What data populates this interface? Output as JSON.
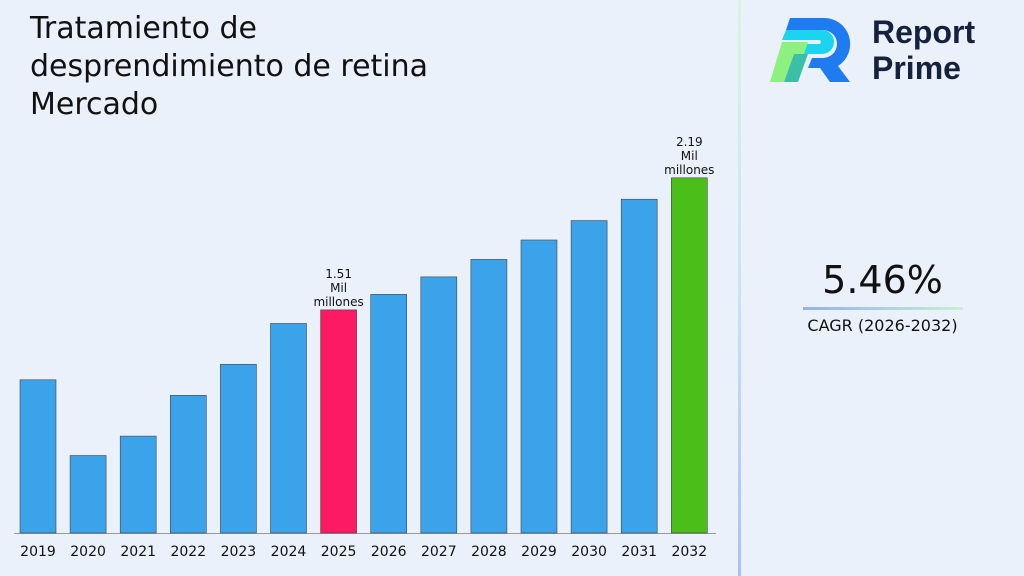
{
  "title": "Tratamiento de desprendimiento de retina Mercado",
  "brand": {
    "line1": "Report",
    "line2": "Prime"
  },
  "cagr": {
    "value": "5.46%",
    "label": "CAGR (2026-2032)"
  },
  "chart_data": {
    "type": "bar",
    "title": "Tratamiento de desprendimiento de retina Mercado",
    "categories": [
      "2019",
      "2020",
      "2021",
      "2022",
      "2023",
      "2024",
      "2025",
      "2026",
      "2027",
      "2028",
      "2029",
      "2030",
      "2031",
      "2032"
    ],
    "values": [
      1.15,
      0.76,
      0.86,
      1.07,
      1.23,
      1.44,
      1.51,
      1.59,
      1.68,
      1.77,
      1.87,
      1.97,
      2.08,
      2.19
    ],
    "unit": "Mil millones",
    "data_labels": {
      "2025": [
        "1.51",
        "Mil",
        "millones"
      ],
      "2032": [
        "2.19",
        "Mil",
        "millones"
      ]
    },
    "colors": {
      "default": "#3ba3ea",
      "2025": "#fb1a63",
      "2032": "#4cbe19"
    },
    "ylim": [
      0.36,
      2.2
    ],
    "grid": false,
    "legend": "none",
    "xlabel": "",
    "ylabel": ""
  }
}
